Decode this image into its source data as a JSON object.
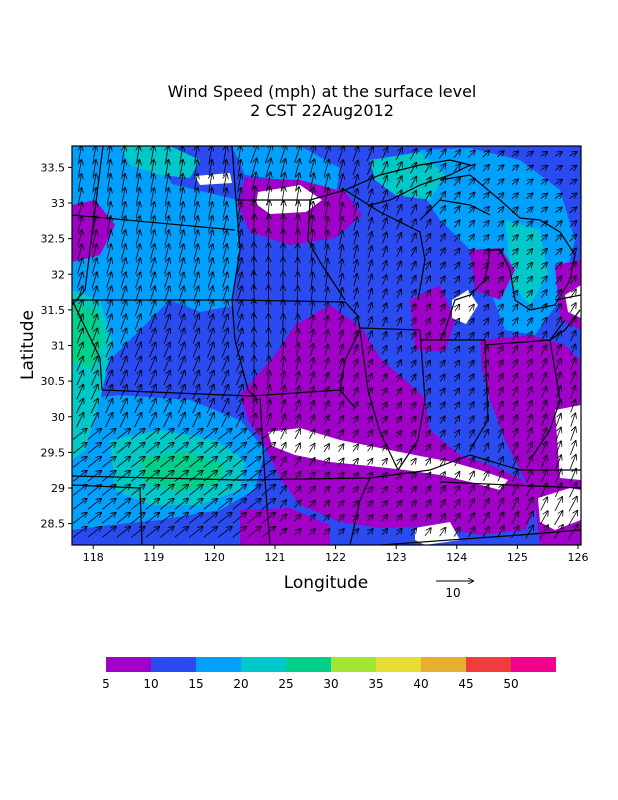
{
  "title": "Wind Speed (mph) at the surface level",
  "subtitle": "2 CST 22Aug2012",
  "xlabel": "Longitude",
  "ylabel": "Latitude",
  "x_ticks": [
    "118",
    "119",
    "120",
    "121",
    "122",
    "123",
    "124",
    "125",
    "126"
  ],
  "y_ticks": [
    "33.5",
    "33",
    "32.5",
    "32",
    "31.5",
    "31",
    "30.5",
    "30",
    "29.5",
    "29",
    "28.5"
  ],
  "x_range": [
    117.65,
    126.05
  ],
  "y_range": [
    28.2,
    33.8
  ],
  "vector_reference": {
    "label": "10",
    "magnitude": 10
  },
  "colorbar": {
    "tick_labels": [
      "5",
      "10",
      "15",
      "20",
      "25",
      "30",
      "35",
      "40",
      "45",
      "50"
    ],
    "colors": [
      "#a000c8",
      "#2a4bf0",
      "#00a0ff",
      "#00c8c8",
      "#00d08c",
      "#a0e632",
      "#e6dc32",
      "#e6af2d",
      "#f03c3c",
      "#f0008c"
    ]
  },
  "background_color": "#ffffff"
}
